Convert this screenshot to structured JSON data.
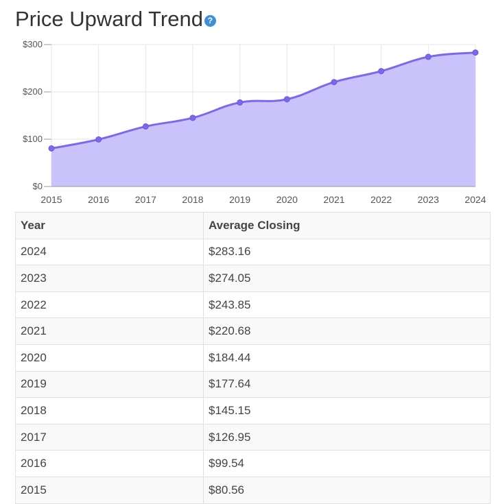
{
  "title": "Price Upward Trend",
  "help_icon_glyph": "?",
  "chart_data": {
    "type": "area",
    "x": [
      "2015",
      "2016",
      "2017",
      "2018",
      "2019",
      "2020",
      "2021",
      "2022",
      "2023",
      "2024"
    ],
    "series": [
      {
        "values": [
          80.56,
          99.54,
          126.95,
          145.15,
          177.64,
          184.44,
          220.68,
          243.85,
          274.05,
          283.16
        ]
      }
    ],
    "y_ticks": [
      "$0",
      "$100",
      "$200",
      "$300"
    ],
    "ylim": [
      0,
      300
    ],
    "grid": true,
    "colors": {
      "line": "#7b68ee",
      "fill": "#c5bdfb",
      "grid": "#e6e6e6"
    }
  },
  "table": {
    "headers": [
      "Year",
      "Average Closing"
    ],
    "rows": [
      [
        "2024",
        "$283.16"
      ],
      [
        "2023",
        "$274.05"
      ],
      [
        "2022",
        "$243.85"
      ],
      [
        "2021",
        "$220.68"
      ],
      [
        "2020",
        "$184.44"
      ],
      [
        "2019",
        "$177.64"
      ],
      [
        "2018",
        "$145.15"
      ],
      [
        "2017",
        "$126.95"
      ],
      [
        "2016",
        "$99.54"
      ],
      [
        "2015",
        "$80.56"
      ]
    ]
  }
}
